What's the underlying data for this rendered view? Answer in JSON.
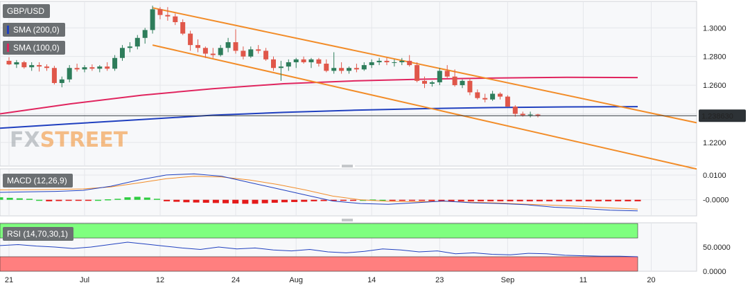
{
  "labels": {
    "symbol": "GBP/USD",
    "sma200": "SMA (200,0)",
    "sma100": "SMA (100,0)",
    "macd": "MACD (12,26,9)",
    "rsi": "RSI (14,70,30,1)"
  },
  "logo": {
    "fx": "FX",
    "street": "STREET"
  },
  "colors": {
    "bull": "#2e7d5b",
    "bear": "#e0574a",
    "sma200": "#1f3fbf",
    "sma100": "#e0245e",
    "channel": "#f28c28",
    "macd_line": "#1f3fbf",
    "signal_line": "#f28c28",
    "hist_pos": "#2ecc40",
    "hist_neg": "#e41a1a",
    "rsi_line": "#1f3fbf",
    "rsi_ob": "#7fff7f",
    "rsi_os": "#ff7f7f"
  },
  "chart_data": [
    {
      "type": "candlestick",
      "title": "GBP/USD",
      "ylim": [
        1.2035,
        1.3185
      ],
      "y_ticks": [
        "1.3000",
        "1.2800",
        "1.2600",
        "1.2400",
        "1.2200"
      ],
      "x_ticks": [
        "21",
        "Jul",
        "12",
        "24",
        "Aug",
        "14",
        "23",
        "Sep",
        "11",
        "20"
      ],
      "x_tick_index": [
        0,
        10,
        20,
        30,
        38,
        48,
        57,
        66,
        76,
        85
      ],
      "last_price": "1.238630",
      "candles": [
        [
          1.277,
          1.2795,
          1.274,
          1.2745
        ],
        [
          1.2745,
          1.2775,
          1.272,
          1.276
        ],
        [
          1.276,
          1.277,
          1.2715,
          1.2725
        ],
        [
          1.2725,
          1.276,
          1.27,
          1.274
        ],
        [
          1.274,
          1.276,
          1.2695,
          1.273
        ],
        [
          1.273,
          1.2745,
          1.27,
          1.272
        ],
        [
          1.272,
          1.2735,
          1.2605,
          1.2615
        ],
        [
          1.2615,
          1.266,
          1.2585,
          1.264
        ],
        [
          1.264,
          1.274,
          1.262,
          1.272
        ],
        [
          1.272,
          1.275,
          1.2695,
          1.271
        ],
        [
          1.271,
          1.274,
          1.269,
          1.2725
        ],
        [
          1.2725,
          1.2745,
          1.27,
          1.2715
        ],
        [
          1.2715,
          1.274,
          1.269,
          1.273
        ],
        [
          1.273,
          1.276,
          1.27,
          1.2715
        ],
        [
          1.2715,
          1.281,
          1.27,
          1.279
        ],
        [
          1.279,
          1.288,
          1.277,
          1.286
        ],
        [
          1.286,
          1.29,
          1.283,
          1.287
        ],
        [
          1.287,
          1.295,
          1.285,
          1.293
        ],
        [
          1.293,
          1.3,
          1.289,
          1.2985
        ],
        [
          1.2985,
          1.3155,
          1.296,
          1.313
        ],
        [
          1.313,
          1.3145,
          1.306,
          1.309
        ],
        [
          1.309,
          1.3145,
          1.305,
          1.308
        ],
        [
          1.308,
          1.31,
          1.302,
          1.304
        ],
        [
          1.304,
          1.306,
          1.295,
          1.296
        ],
        [
          1.296,
          1.298,
          1.284,
          1.288
        ],
        [
          1.288,
          1.292,
          1.283,
          1.286
        ],
        [
          1.286,
          1.287,
          1.279,
          1.282
        ],
        [
          1.282,
          1.286,
          1.279,
          1.281
        ],
        [
          1.281,
          1.288,
          1.28,
          1.286
        ],
        [
          1.286,
          1.293,
          1.283,
          1.29
        ],
        [
          1.29,
          1.299,
          1.282,
          1.284
        ],
        [
          1.284,
          1.287,
          1.278,
          1.28
        ],
        [
          1.28,
          1.287,
          1.279,
          1.285
        ],
        [
          1.285,
          1.288,
          1.282,
          1.284
        ],
        [
          1.284,
          1.286,
          1.277,
          1.278
        ],
        [
          1.278,
          1.28,
          1.27,
          1.272
        ],
        [
          1.272,
          1.277,
          1.263,
          1.273
        ],
        [
          1.273,
          1.278,
          1.27,
          1.276
        ],
        [
          1.276,
          1.279,
          1.272,
          1.278
        ],
        [
          1.278,
          1.28,
          1.275,
          1.276
        ],
        [
          1.276,
          1.279,
          1.272,
          1.278
        ],
        [
          1.278,
          1.279,
          1.273,
          1.275
        ],
        [
          1.275,
          1.278,
          1.269,
          1.27
        ],
        [
          1.27,
          1.283,
          1.268,
          1.272
        ],
        [
          1.272,
          1.276,
          1.268,
          1.27
        ],
        [
          1.27,
          1.273,
          1.268,
          1.272
        ],
        [
          1.272,
          1.275,
          1.269,
          1.271
        ],
        [
          1.271,
          1.276,
          1.27,
          1.274
        ],
        [
          1.274,
          1.278,
          1.272,
          1.276
        ],
        [
          1.276,
          1.279,
          1.274,
          1.277
        ],
        [
          1.277,
          1.279,
          1.274,
          1.276
        ],
        [
          1.276,
          1.278,
          1.273,
          1.276
        ],
        [
          1.276,
          1.279,
          1.274,
          1.277
        ],
        [
          1.277,
          1.281,
          1.273,
          1.274
        ],
        [
          1.274,
          1.276,
          1.262,
          1.263
        ],
        [
          1.263,
          1.266,
          1.258,
          1.261
        ],
        [
          1.261,
          1.263,
          1.259,
          1.262
        ],
        [
          1.262,
          1.272,
          1.26,
          1.27
        ],
        [
          1.27,
          1.274,
          1.265,
          1.266
        ],
        [
          1.266,
          1.271,
          1.259,
          1.26
        ],
        [
          1.26,
          1.264,
          1.258,
          1.263
        ],
        [
          1.263,
          1.265,
          1.253,
          1.255
        ],
        [
          1.255,
          1.257,
          1.25,
          1.251
        ],
        [
          1.251,
          1.254,
          1.248,
          1.25
        ],
        [
          1.25,
          1.256,
          1.249,
          1.254
        ],
        [
          1.254,
          1.255,
          1.25,
          1.252
        ],
        [
          1.252,
          1.253,
          1.245,
          1.245
        ],
        [
          1.245,
          1.246,
          1.238,
          1.24
        ],
        [
          1.24,
          1.2415,
          1.238,
          1.239
        ],
        [
          1.239,
          1.2415,
          1.2375,
          1.2395
        ],
        [
          1.2395,
          1.24,
          1.2375,
          1.2386
        ]
      ],
      "sma200": [
        1.23,
        1.233,
        1.236,
        1.239,
        1.241,
        1.2425,
        1.2436,
        1.2444,
        1.2448,
        1.245
      ],
      "sma100": [
        1.24,
        1.247,
        1.253,
        1.2575,
        1.261,
        1.263,
        1.2642,
        1.265,
        1.2655,
        1.2653
      ],
      "channel_upper": [
        [
          19,
          1.314
        ],
        [
          76,
          1.2505
        ]
      ],
      "channel_lower": [
        [
          19,
          1.288
        ],
        [
          76,
          1.2195
        ]
      ]
    },
    {
      "type": "macd",
      "title": "MACD (12,26,9)",
      "ylim": [
        -0.0065,
        0.0125
      ],
      "y_ticks": [
        "0.0100",
        "-0.0000"
      ],
      "macd_line": [
        0.003,
        0.0032,
        0.0034,
        0.0038,
        0.0055,
        0.008,
        0.01,
        0.0105,
        0.0095,
        0.007,
        0.0045,
        0.002,
        -0.0005,
        -0.0015,
        -0.0018,
        -0.0012,
        -0.0005,
        -0.0012,
        -0.0015,
        -0.002,
        -0.003,
        -0.0035,
        -0.0042,
        -0.0045
      ],
      "signal_line": [
        0.004,
        0.0041,
        0.0042,
        0.0044,
        0.0052,
        0.0068,
        0.0085,
        0.0095,
        0.0092,
        0.008,
        0.0062,
        0.004,
        0.0015,
        0.0,
        -0.0006,
        -0.0008,
        -0.0006,
        -0.001,
        -0.0013,
        -0.0018,
        -0.0022,
        -0.0027,
        -0.0033,
        -0.0038
      ],
      "histogram": [
        0.001,
        0.0008,
        0.0006,
        0.0004,
        0.0,
        -0.0006,
        -0.0005,
        -0.0004,
        -0.0004,
        -0.0003,
        0.0,
        0.0002,
        0.0004,
        0.001,
        0.0012,
        0.0009,
        0.0004,
        -0.0006,
        -0.0008,
        -0.001,
        -0.0011,
        -0.0012,
        -0.0013,
        -0.0014,
        -0.0015,
        -0.0016,
        -0.0016,
        -0.0014,
        -0.0012,
        -0.001,
        -0.0009,
        -0.0008,
        -0.0006,
        -0.0005,
        -0.0004,
        -0.0002,
        -0.0001,
        0.0,
        0.0001,
        0.0,
        -0.0001,
        -0.0002,
        -0.0003,
        -0.0004,
        -0.0005,
        -0.0006,
        -0.0006,
        -0.0006,
        -0.0006,
        -0.0006,
        -0.0006,
        -0.0006,
        -0.0006,
        -0.0006,
        -0.0006,
        -0.0006,
        -0.0006,
        -0.0006,
        -0.0006,
        -0.0006,
        -0.0006,
        -0.0006,
        -0.0006,
        -0.0006,
        -0.0006,
        -0.0006
      ]
    },
    {
      "type": "line",
      "title": "RSI (14,70,30,1)",
      "ylim": [
        0,
        100
      ],
      "y_ticks": [
        "50.0000",
        "0.0000"
      ],
      "overbought": 70,
      "oversold": 30,
      "rsi": [
        53,
        55,
        52,
        50,
        47,
        50,
        55,
        60,
        56,
        52,
        48,
        45,
        50,
        46,
        48,
        44,
        42,
        45,
        40,
        38,
        41,
        46,
        44,
        40,
        42,
        36,
        38,
        35,
        34,
        37,
        36,
        33,
        32,
        31,
        31,
        30
      ]
    }
  ]
}
